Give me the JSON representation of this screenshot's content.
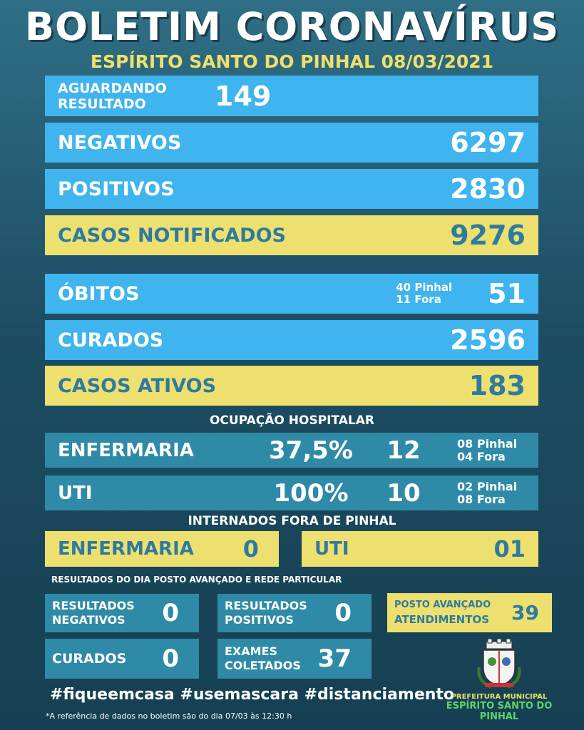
{
  "title": "BOLETIM CORONAVÍRUS",
  "subtitle": "ESPÍRITO SANTO DO PINHAL 08/03/2021",
  "aguardando": {
    "label": "AGUARDANDO RESULTADO",
    "value": "149"
  },
  "negativos": {
    "label": "NEGATIVOS",
    "value": "6297"
  },
  "positivos": {
    "label": "POSITIVOS",
    "value": "2830"
  },
  "notificados": {
    "label": "CASOS NOTIFICADOS",
    "value": "9276"
  },
  "obitos": {
    "label": "ÓBITOS",
    "detail1": "40 Pinhal",
    "detail2": "11 Fora",
    "value": "51"
  },
  "curados": {
    "label": "CURADOS",
    "value": "2596"
  },
  "ativos": {
    "label": "CASOS ATIVOS",
    "value": "183"
  },
  "ocupacao": {
    "heading": "OCUPAÇÃO HOSPITALAR",
    "enfermaria": {
      "label": "ENFERMARIA",
      "pct": "37,5%",
      "num": "12",
      "d1": "08 Pinhal",
      "d2": "04 Fora"
    },
    "uti": {
      "label": "UTI",
      "pct": "100%",
      "num": "10",
      "d1": "02 Pinhal",
      "d2": "08 Fora"
    }
  },
  "internados": {
    "heading": "INTERNADOS FORA DE PINHAL",
    "enfermaria": {
      "label": "ENFERMARIA",
      "value": "0"
    },
    "uti": {
      "label": "UTI",
      "value": "01"
    }
  },
  "resultados": {
    "heading": "RESULTADOS DO DIA POSTO AVANÇADO E REDE  PARTICULAR",
    "negativos": {
      "l1": "RESULTADOS",
      "l2": "NEGATIVOS",
      "value": "0"
    },
    "positivos": {
      "l1": "RESULTADOS",
      "l2": "POSITIVOS",
      "value": "0"
    },
    "posto": {
      "l1": "POSTO AVANÇADO",
      "l2": "ATENDIMENTOS",
      "value": "39"
    },
    "curados": {
      "label": "CURADOS",
      "value": "0"
    },
    "exames": {
      "l1": "EXAMES",
      "l2": "COLETADOS",
      "value": "37"
    }
  },
  "hashtags": "#fiqueemcasa #usemascara #distanciamento",
  "footnote": "*A referência de dados no boletim são do dia  07/03 às 12:30 h",
  "logo": {
    "line1": "PREFEITURA MUNICIPAL",
    "line2": "ESPÍRITO SANTO DO PINHAL"
  },
  "colors": {
    "blue": "#3fb4ee",
    "yellow": "#ede06e",
    "teal": "#2e8aa7",
    "background": "#1d4d63"
  }
}
